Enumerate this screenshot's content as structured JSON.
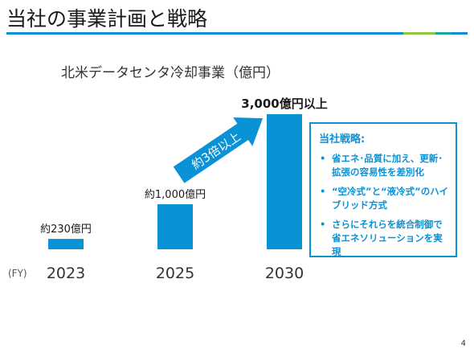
{
  "slide": {
    "title": "当社の事業計画と戦略",
    "page_number": "4",
    "rule_colors": [
      "#0a8fd4",
      "#8fc43e",
      "#16a6a0",
      "#0a8fd4"
    ]
  },
  "chart_data": {
    "type": "bar",
    "title": "北米データセンタ冷却事業（億円）",
    "xlabel": "(FY)",
    "ylabel": "",
    "categories": [
      "2023",
      "2025",
      "2030"
    ],
    "values": [
      230,
      1000,
      3000
    ],
    "data_labels": [
      "約230億円",
      "約1,000億円",
      "3,000億円以上"
    ],
    "ylim": [
      0,
      3000
    ],
    "bar_color": "#0a92d6",
    "grid": false,
    "annotation_arrow": {
      "label": "約3倍以上",
      "from_category": "2025",
      "to_category": "2030",
      "color": "#0a92d6"
    }
  },
  "annotation_box": {
    "heading": "当社戦略:",
    "bullet_glyph": "•",
    "items": [
      "省エネ･品質に加え、更新･拡張の容易性を差別化",
      "“空冷式”と“液冷式”のハイブリッド方式",
      "さらにそれらを統合制御で省エネソリューションを実現"
    ],
    "color": "#0a92d6"
  }
}
